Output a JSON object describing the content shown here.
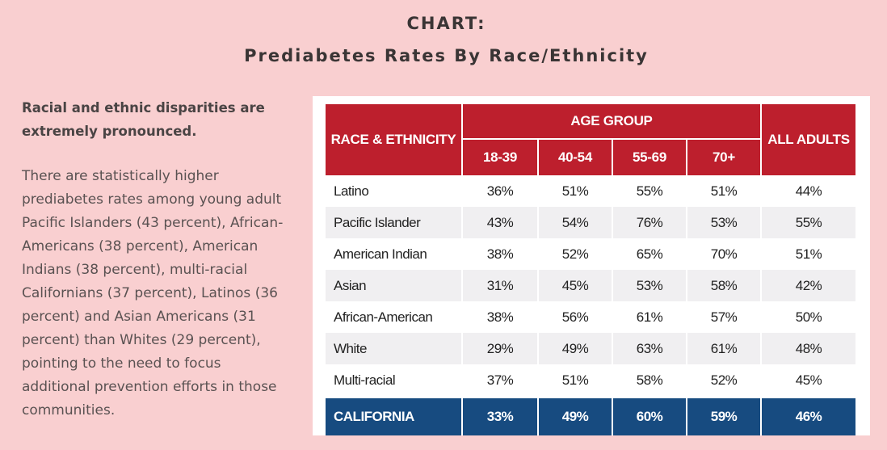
{
  "header": {
    "line1": "CHART:",
    "line2": "Prediabetes Rates By Race/Ethnicity"
  },
  "sidebar": {
    "lead": "Racial and ethnic disparities are extremely pronounced.",
    "body": "There are statistically higher prediabetes rates among young adult Pacific Islanders (43 percent), African-Americans (38 percent), American Indians (38 percent), multi-racial Californians (37 percent), Latinos (36 percent) and Asian Americans (31 percent) than Whites (29 percent), pointing to the need to focus additional prevention efforts in those communities."
  },
  "colors": {
    "header_red": "#bd1f2d",
    "california_blue": "#174b80",
    "page_pink": "#f9cfd0",
    "row_alt": "#f0eff1"
  },
  "chart_data": {
    "type": "table",
    "title": "Prediabetes Rates By Race/Ethnicity",
    "row_header": "RACE & ETHNICITY",
    "group_header": "AGE GROUP",
    "columns": [
      "18-39",
      "40-54",
      "55-69",
      "70+",
      "ALL ADULTS"
    ],
    "rows": [
      {
        "label": "Latino",
        "values": [
          "36%",
          "51%",
          "55%",
          "51%",
          "44%"
        ]
      },
      {
        "label": "Pacific Islander",
        "values": [
          "43%",
          "54%",
          "76%",
          "53%",
          "55%"
        ]
      },
      {
        "label": "American Indian",
        "values": [
          "38%",
          "52%",
          "65%",
          "70%",
          "51%"
        ]
      },
      {
        "label": "Asian",
        "values": [
          "31%",
          "45%",
          "53%",
          "58%",
          "42%"
        ]
      },
      {
        "label": "African-American",
        "values": [
          "38%",
          "56%",
          "61%",
          "57%",
          "50%"
        ]
      },
      {
        "label": "White",
        "values": [
          "29%",
          "49%",
          "63%",
          "61%",
          "48%"
        ]
      },
      {
        "label": "Multi-racial",
        "values": [
          "37%",
          "51%",
          "58%",
          "52%",
          "45%"
        ]
      }
    ],
    "total": {
      "label": "CALIFORNIA",
      "values": [
        "33%",
        "49%",
        "60%",
        "59%",
        "46%"
      ]
    }
  }
}
